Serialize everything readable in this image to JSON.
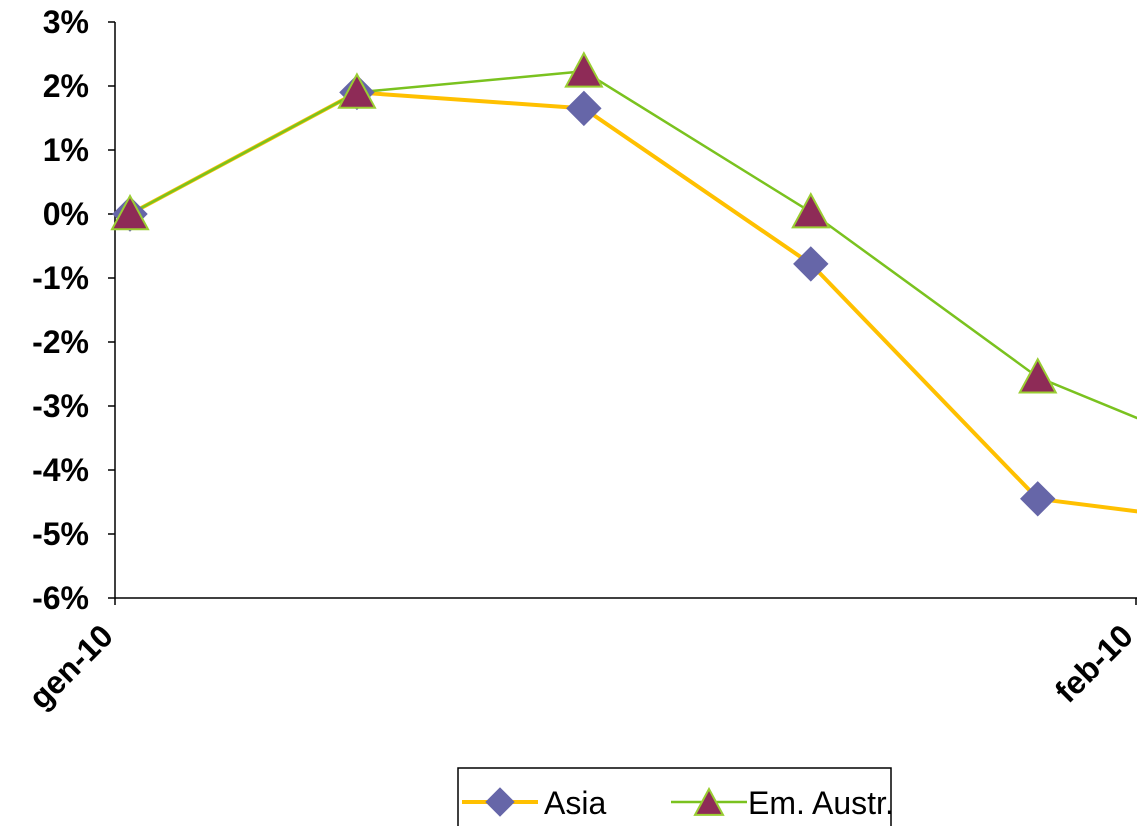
{
  "chart_data": {
    "type": "line",
    "x": [
      0,
      7,
      14,
      21,
      28
    ],
    "x_tick_labels": [
      "gen-10",
      "feb-10"
    ],
    "x_tick_positions": [
      0,
      31
    ],
    "xlim": [
      0,
      31
    ],
    "y_tick_labels": [
      "3%",
      "2%",
      "1%",
      "0%",
      "-1%",
      "-2%",
      "-3%",
      "-4%",
      "-5%",
      "-6%"
    ],
    "ylim": [
      -0.06,
      0.03
    ],
    "series": [
      {
        "name": "Asia",
        "values": [
          0.0,
          0.019,
          0.0165,
          -0.0078,
          -0.0445
        ],
        "tail_value": -0.0465,
        "line_color": "#FFC000",
        "marker": "diamond",
        "marker_fill": "#6666A8",
        "marker_stroke": "#6666A8"
      },
      {
        "name": "Em. Austr.",
        "values": [
          0.0,
          0.019,
          0.0223,
          0.0003,
          -0.0255
        ],
        "tail_value": -0.032,
        "line_color": "#7AC21F",
        "marker": "triangle",
        "marker_fill": "#8E2B57",
        "marker_stroke": "#9ACD32"
      }
    ],
    "title": "",
    "xlabel": "",
    "ylabel": "",
    "grid": false,
    "legend_position": "bottom"
  }
}
